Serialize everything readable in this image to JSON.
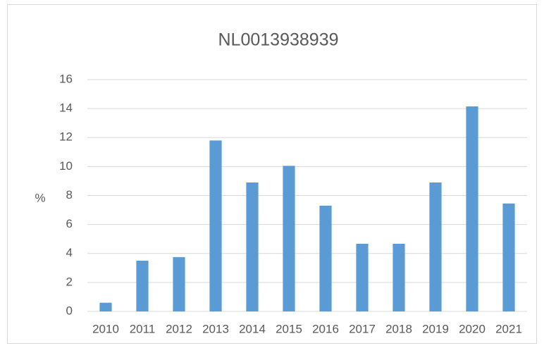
{
  "chart_data": {
    "type": "bar",
    "title": "NL0013938939",
    "ylabel": "%",
    "categories": [
      "2010",
      "2011",
      "2012",
      "2013",
      "2014",
      "2015",
      "2016",
      "2017",
      "2018",
      "2019",
      "2020",
      "2021"
    ],
    "values": [
      0.6,
      3.5,
      3.75,
      11.8,
      8.9,
      10.05,
      7.3,
      4.67,
      4.67,
      8.9,
      14.15,
      7.45
    ],
    "color": "#5b9bd5",
    "ylim": [
      0,
      16
    ],
    "yticks": [
      0,
      2,
      4,
      6,
      8,
      10,
      12,
      14,
      16
    ],
    "grid": true
  }
}
